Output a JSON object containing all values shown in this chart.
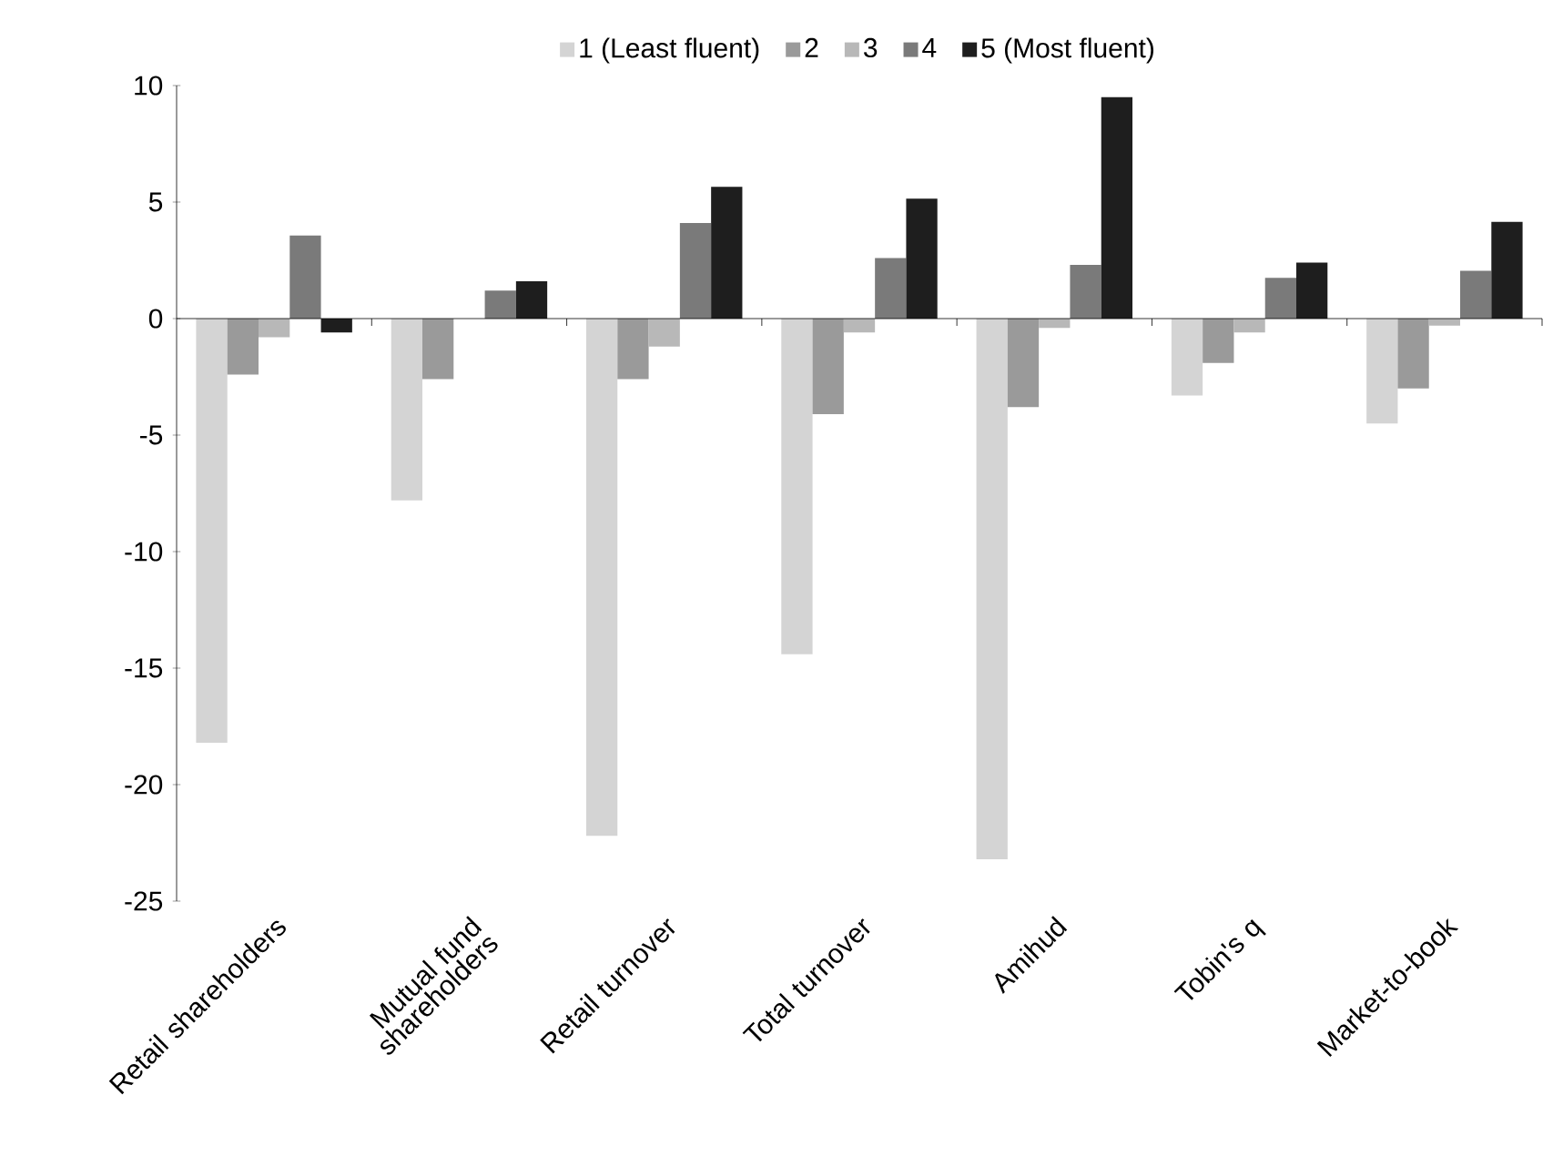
{
  "chart_data": {
    "type": "bar",
    "categories": [
      "Retail shareholders",
      "Mutual fund shareholders",
      "Retail turnover",
      "Total turnover",
      "Amihud",
      "Tobin's q",
      "Market-to-book"
    ],
    "series": [
      {
        "name": "1 (Least fluent)",
        "color": "#d4d4d4",
        "values": [
          -18.2,
          -7.8,
          -22.2,
          -14.4,
          -23.2,
          -3.3,
          -4.5
        ]
      },
      {
        "name": "2",
        "color": "#9a9a9a",
        "values": [
          -2.4,
          -2.6,
          -2.6,
          -4.1,
          -3.8,
          -1.9,
          -3.0
        ]
      },
      {
        "name": "3",
        "color": "#b8b8b8",
        "values": [
          -0.8,
          null,
          -1.2,
          -0.6,
          -0.4,
          -0.6,
          -0.3
        ]
      },
      {
        "name": "4",
        "color": "#7a7a7a",
        "values": [
          3.56,
          1.2,
          4.1,
          2.6,
          2.3,
          1.75,
          2.05
        ]
      },
      {
        "name": "5 (Most fluent)",
        "color": "#1e1e1e",
        "values": [
          -0.6,
          1.6,
          5.65,
          5.15,
          9.5,
          2.4,
          4.15
        ]
      }
    ],
    "ylim": [
      -25,
      10
    ],
    "yticks": [
      -25,
      -20,
      -15,
      -10,
      -5,
      0,
      5,
      10
    ],
    "legend": "top"
  }
}
